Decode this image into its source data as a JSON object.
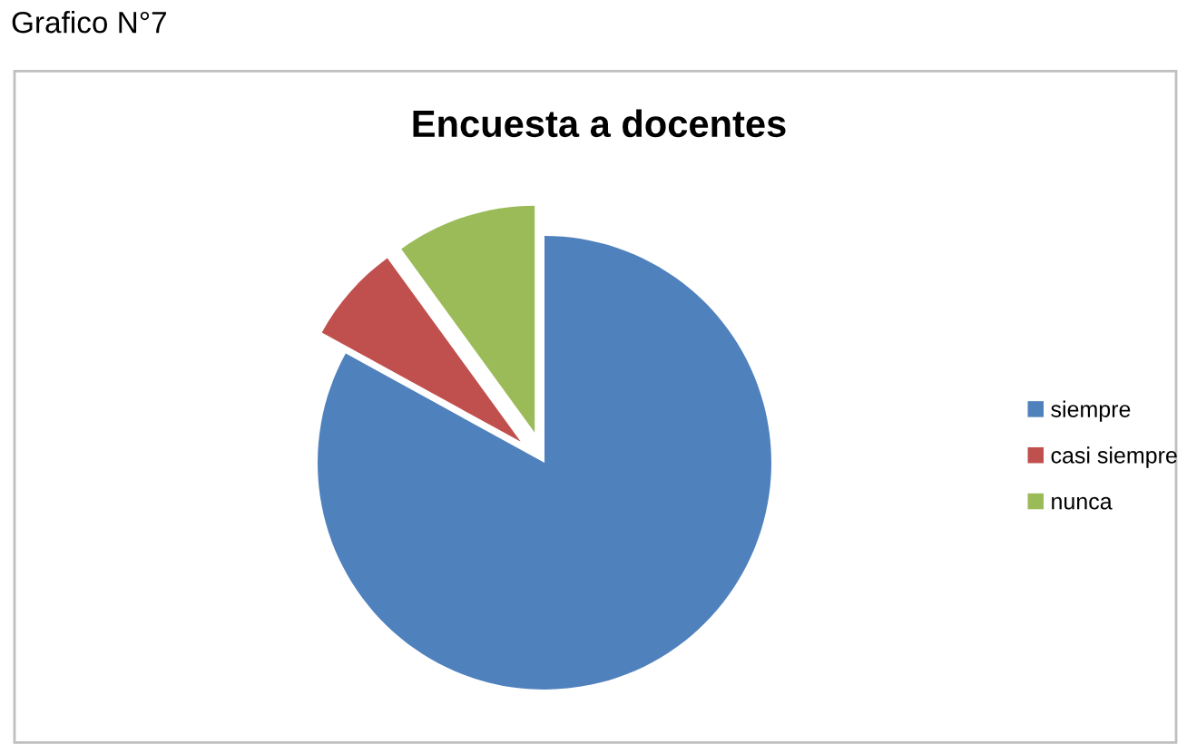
{
  "chart_data": {
    "type": "pie",
    "title": "Encuesta a docentes",
    "categories": [
      "siempre",
      "casi siempre",
      "nunca"
    ],
    "values": [
      83,
      7,
      10
    ],
    "colors": [
      "#4f81bd",
      "#c0504d",
      "#9bbb59"
    ],
    "legend": "right",
    "annotations": [
      "Grafico N°7"
    ]
  }
}
